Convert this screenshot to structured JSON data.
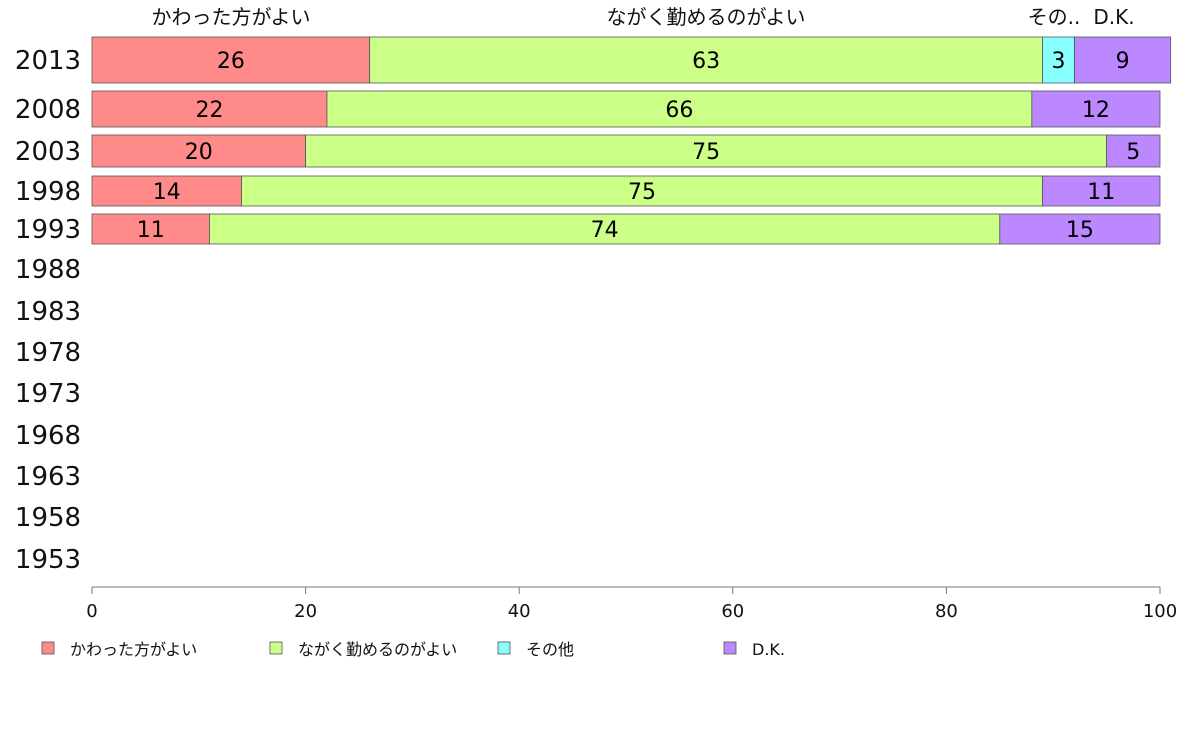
{
  "chart_data": {
    "type": "bar",
    "orientation": "horizontal",
    "stacked": true,
    "categories": [
      "2013",
      "2008",
      "2003",
      "1998",
      "1993",
      "1988",
      "1983",
      "1978",
      "1973",
      "1968",
      "1963",
      "1958",
      "1953"
    ],
    "series": [
      {
        "name": "かわった方がよい",
        "color": "#ff8a8a",
        "values": [
          26,
          22,
          20,
          14,
          11,
          null,
          null,
          null,
          null,
          null,
          null,
          null,
          null
        ]
      },
      {
        "name": "ながく勤めるのがよい",
        "color": "#ccff88",
        "values": [
          63,
          66,
          75,
          75,
          74,
          null,
          null,
          null,
          null,
          null,
          null,
          null,
          null
        ]
      },
      {
        "name": "その他",
        "color": "#88ffff",
        "values": [
          3,
          0,
          0,
          0,
          0,
          null,
          null,
          null,
          null,
          null,
          null,
          null,
          null
        ]
      },
      {
        "name": "D.K.",
        "color": "#bb88ff",
        "values": [
          9,
          12,
          5,
          11,
          15,
          null,
          null,
          null,
          null,
          null,
          null,
          null,
          null
        ]
      }
    ],
    "top_labels": [
      "かわった方がよい",
      "ながく勤めるのがよい",
      "その..",
      "D.K."
    ],
    "xlim": [
      0,
      100
    ],
    "xticks": [
      0,
      20,
      40,
      60,
      80,
      100
    ],
    "grid": false,
    "legend": "bottom",
    "title": "",
    "xlabel": "",
    "ylabel": ""
  }
}
